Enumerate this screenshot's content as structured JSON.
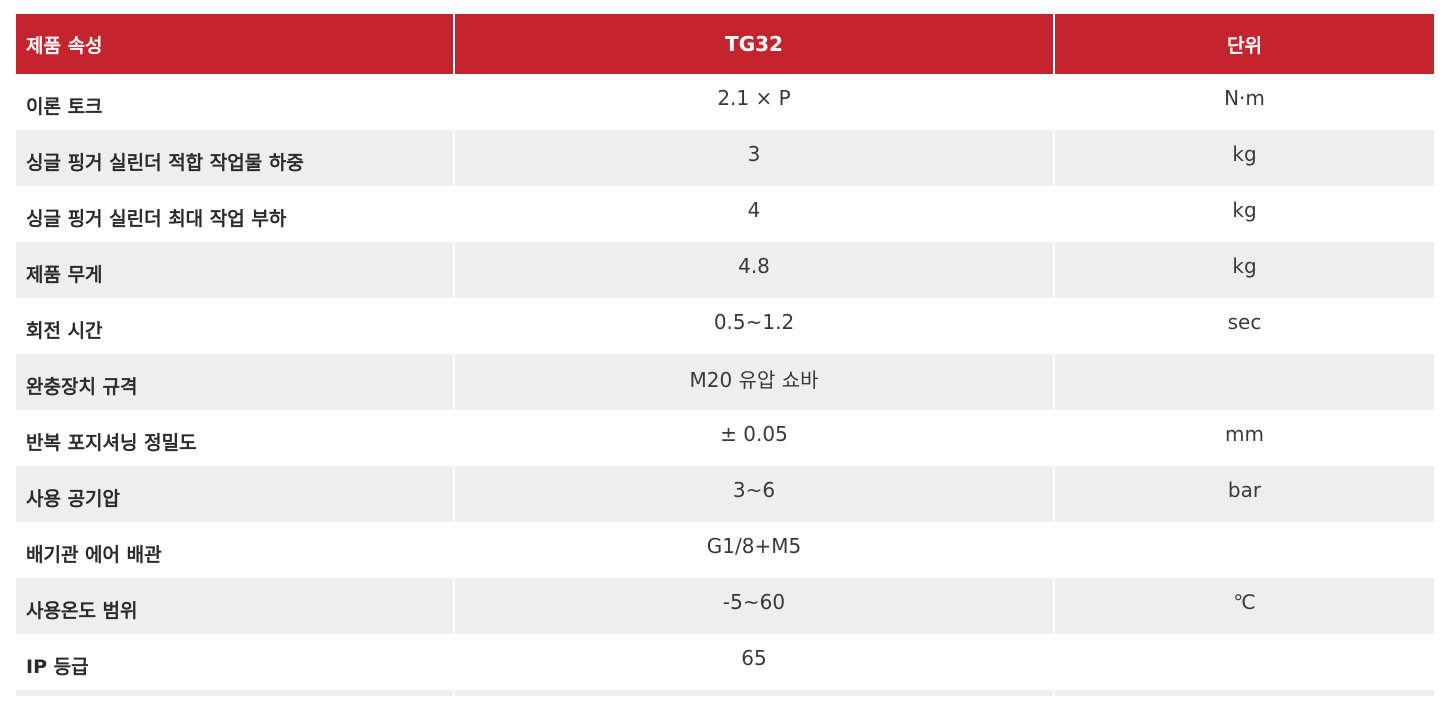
{
  "header": {
    "attribute": "제품 속성",
    "value": "TG32",
    "unit": "단위"
  },
  "rows": [
    {
      "attribute": "이론 토크",
      "value": "2.1 × P",
      "unit": "N·m"
    },
    {
      "attribute": "싱글 핑거 실린더 적합 작업물 하중",
      "value": "3",
      "unit": "kg"
    },
    {
      "attribute": "싱글 핑거 실린더 최대 작업 부하",
      "value": "4",
      "unit": "kg"
    },
    {
      "attribute": "제품 무게",
      "value": "4.8",
      "unit": "kg"
    },
    {
      "attribute": "회전 시간",
      "value": "0.5~1.2",
      "unit": "sec"
    },
    {
      "attribute": "완충장치 규격",
      "value": "M20 유압 쇼바",
      "unit": ""
    },
    {
      "attribute": "반복 포지셔닝 정밀도",
      "value": "± 0.05",
      "unit": "mm"
    },
    {
      "attribute": "사용 공기압",
      "value": "3~6",
      "unit": "bar"
    },
    {
      "attribute": "배기관 에어 배관",
      "value": "G1/8+M5",
      "unit": ""
    },
    {
      "attribute": "사용온도 범위",
      "value": "-5~60",
      "unit": "℃"
    },
    {
      "attribute": "IP 등급",
      "value": "65",
      "unit": ""
    }
  ],
  "colors": {
    "header_bg": "#c4242d",
    "header_text": "#ffffff",
    "row_alt_bg": "#eeeeee"
  }
}
